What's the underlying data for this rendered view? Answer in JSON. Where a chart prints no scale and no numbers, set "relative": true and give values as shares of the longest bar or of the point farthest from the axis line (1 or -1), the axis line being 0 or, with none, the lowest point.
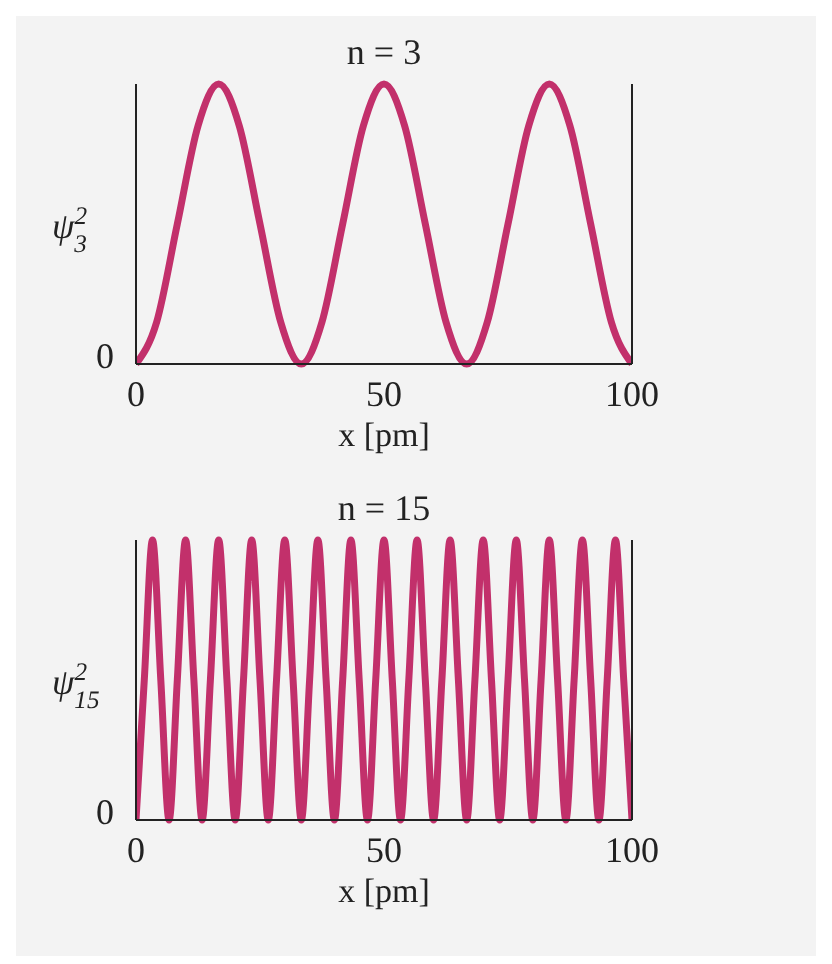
{
  "chart_data": [
    {
      "type": "line",
      "title": "n = 3",
      "ylabel": "ψ$^{2}$$_{3}$",
      "xlabel": "x [pm]",
      "relative": true,
      "annotations": [
        "0"
      ],
      "xlim": [
        0,
        100
      ],
      "xticks": [
        0,
        50,
        100
      ],
      "color": "#c2306b",
      "x": [
        0,
        4.17,
        8.33,
        12.5,
        16.67,
        20.83,
        25,
        29.17,
        33.33,
        37.5,
        41.67,
        45.83,
        50,
        54.17,
        58.33,
        62.5,
        66.67,
        70.83,
        75,
        79.17,
        83.33,
        87.5,
        91.67,
        95.83,
        100
      ],
      "values": [
        0,
        0.15,
        0.5,
        0.85,
        1,
        0.85,
        0.5,
        0.15,
        0,
        0.15,
        0.5,
        0.85,
        1,
        0.85,
        0.5,
        0.15,
        0,
        0.15,
        0.5,
        0.85,
        1,
        0.85,
        0.5,
        0.15,
        0
      ]
    },
    {
      "type": "line",
      "title": "n = 15",
      "ylabel": "ψ$^{2}$$_{15}$",
      "xlabel": "x [pm]",
      "relative": true,
      "annotations": [
        "0"
      ],
      "xlim": [
        0,
        100
      ],
      "xticks": [
        0,
        50,
        100
      ],
      "color": "#c2306b",
      "x": [
        0,
        1.67,
        3.33,
        5,
        6.67,
        8.33,
        10,
        11.67,
        13.33,
        15,
        16.67,
        18.33,
        20,
        21.67,
        23.33,
        25,
        26.67,
        28.33,
        30,
        31.67,
        33.33,
        35,
        36.67,
        38.33,
        40,
        41.67,
        43.33,
        45,
        46.67,
        48.33,
        50,
        51.67,
        53.33,
        55,
        56.67,
        58.33,
        60,
        61.67,
        63.33,
        65,
        66.67,
        68.33,
        70,
        71.67,
        73.33,
        75,
        76.67,
        78.33,
        80,
        81.67,
        83.33,
        85,
        86.67,
        88.33,
        90,
        91.67,
        93.33,
        95,
        96.67,
        98.33,
        100
      ],
      "values": [
        0,
        0.5,
        1,
        0.5,
        0,
        0.5,
        1,
        0.5,
        0,
        0.5,
        1,
        0.5,
        0,
        0.5,
        1,
        0.5,
        0,
        0.5,
        1,
        0.5,
        0,
        0.5,
        1,
        0.5,
        0,
        0.5,
        1,
        0.5,
        0,
        0.5,
        1,
        0.5,
        0,
        0.5,
        1,
        0.5,
        0,
        0.5,
        1,
        0.5,
        0,
        0.5,
        1,
        0.5,
        0,
        0.5,
        1,
        0.5,
        0,
        0.5,
        1,
        0.5,
        0,
        0.5,
        1,
        0.5,
        0,
        0.5,
        1,
        0.5,
        0
      ]
    }
  ]
}
